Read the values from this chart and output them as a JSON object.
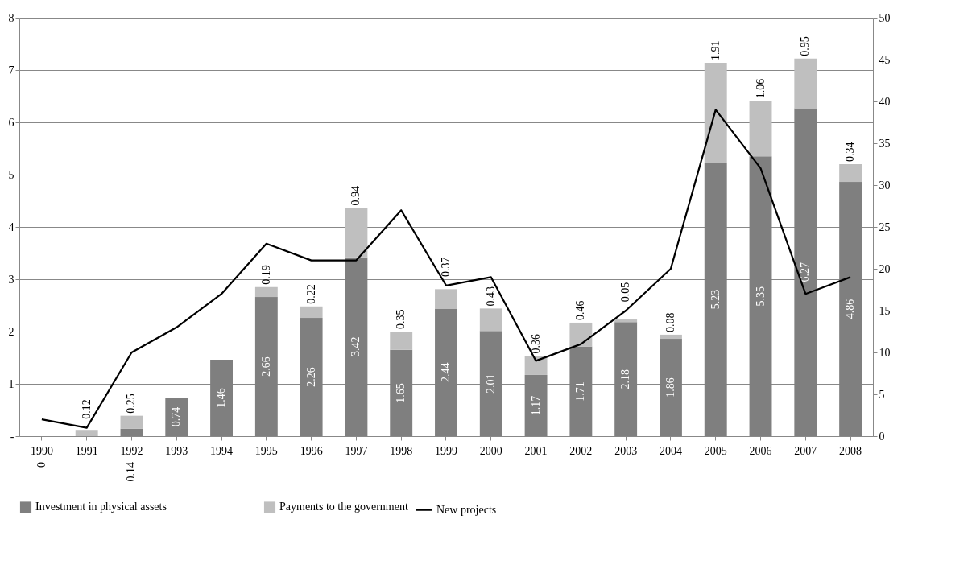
{
  "chart_data": {
    "type": "bar",
    "stacked": true,
    "categories": [
      "1990",
      "1991",
      "1992",
      "1993",
      "1994",
      "1995",
      "1996",
      "1997",
      "1998",
      "1999",
      "2000",
      "2001",
      "2002",
      "2003",
      "2004",
      "2005",
      "2006",
      "2007",
      "2008"
    ],
    "series": [
      {
        "name": "Investment in physical assets",
        "color": "#7f7f7f",
        "values": [
          0,
          null,
          0.14,
          0.74,
          1.46,
          2.66,
          2.26,
          3.42,
          1.65,
          2.44,
          2.01,
          1.17,
          1.71,
          2.18,
          1.86,
          5.23,
          5.35,
          6.27,
          4.86
        ],
        "value_labels": [
          "0",
          null,
          "0.14",
          "0.74",
          "1.46",
          "2.66",
          "2.26",
          "3.42",
          "1.65",
          "2.44",
          "2.01",
          "1.17",
          "1.71",
          "2.18",
          "1.86",
          "5.23",
          "5.35",
          "6.27",
          "4.86"
        ]
      },
      {
        "name": "Payments to the government",
        "color": "#bfbfbf",
        "values": [
          null,
          0.12,
          0.25,
          null,
          null,
          0.19,
          0.22,
          0.94,
          0.35,
          0.37,
          0.43,
          0.36,
          0.46,
          0.05,
          0.08,
          1.91,
          1.06,
          0.95,
          0.34
        ],
        "value_labels": [
          null,
          "0.12",
          "0.25",
          null,
          null,
          "0.19",
          "0.22",
          "0.94",
          "0.35",
          "0.37",
          "0.43",
          "0.36",
          "0.46",
          "0.05",
          "0.08",
          "1.91",
          "1.06",
          "0.95",
          "0.34"
        ]
      },
      {
        "name": "New projects",
        "type": "line",
        "axis": "y2",
        "color": "#000000",
        "values": [
          2,
          1,
          10,
          13,
          17,
          23,
          21,
          21,
          27,
          18,
          19,
          9,
          11,
          15,
          20,
          39,
          32,
          17,
          19
        ]
      }
    ],
    "ylim": [
      0,
      8
    ],
    "yticks": [
      {
        "value": 0,
        "label": "-"
      },
      1,
      2,
      3,
      4,
      5,
      6,
      7,
      8
    ],
    "y2lim": [
      0,
      50
    ],
    "y2ticks": [
      0,
      5,
      10,
      15,
      20,
      25,
      30,
      35,
      40,
      45,
      50
    ],
    "grid": "y",
    "legend": "bottom",
    "line_style": "solid",
    "marker": "none"
  }
}
